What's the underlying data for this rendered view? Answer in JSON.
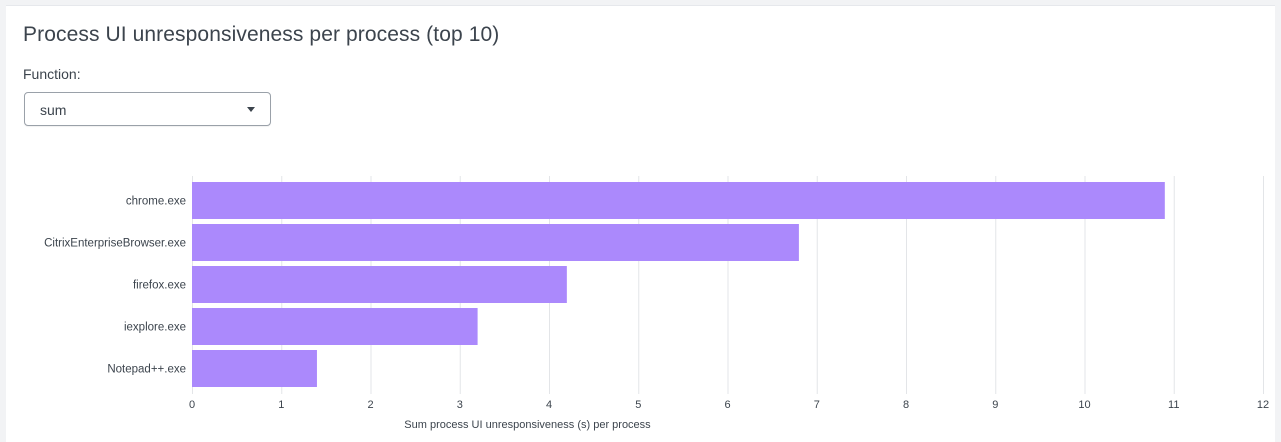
{
  "panel": {
    "title": "Process UI unresponsiveness per process (top 10)",
    "function_label": "Function:",
    "function_select": {
      "value": "sum"
    }
  },
  "chart_data": {
    "type": "bar",
    "orientation": "horizontal",
    "categories": [
      "chrome.exe",
      "CitrixEnterpriseBrowser.exe",
      "firefox.exe",
      "iexplore.exe",
      "Notepad++.exe"
    ],
    "values": [
      10.9,
      6.8,
      4.2,
      3.2,
      1.4
    ],
    "xlabel": "Sum process UI unresponsiveness (s) per process",
    "xlim": [
      0,
      12
    ],
    "xticks": [
      0,
      1,
      2,
      3,
      4,
      5,
      6,
      7,
      8,
      9,
      10,
      11,
      12
    ],
    "grid": true,
    "bar_color": "#ab89fc",
    "grid_color": "#e3e5e8"
  }
}
